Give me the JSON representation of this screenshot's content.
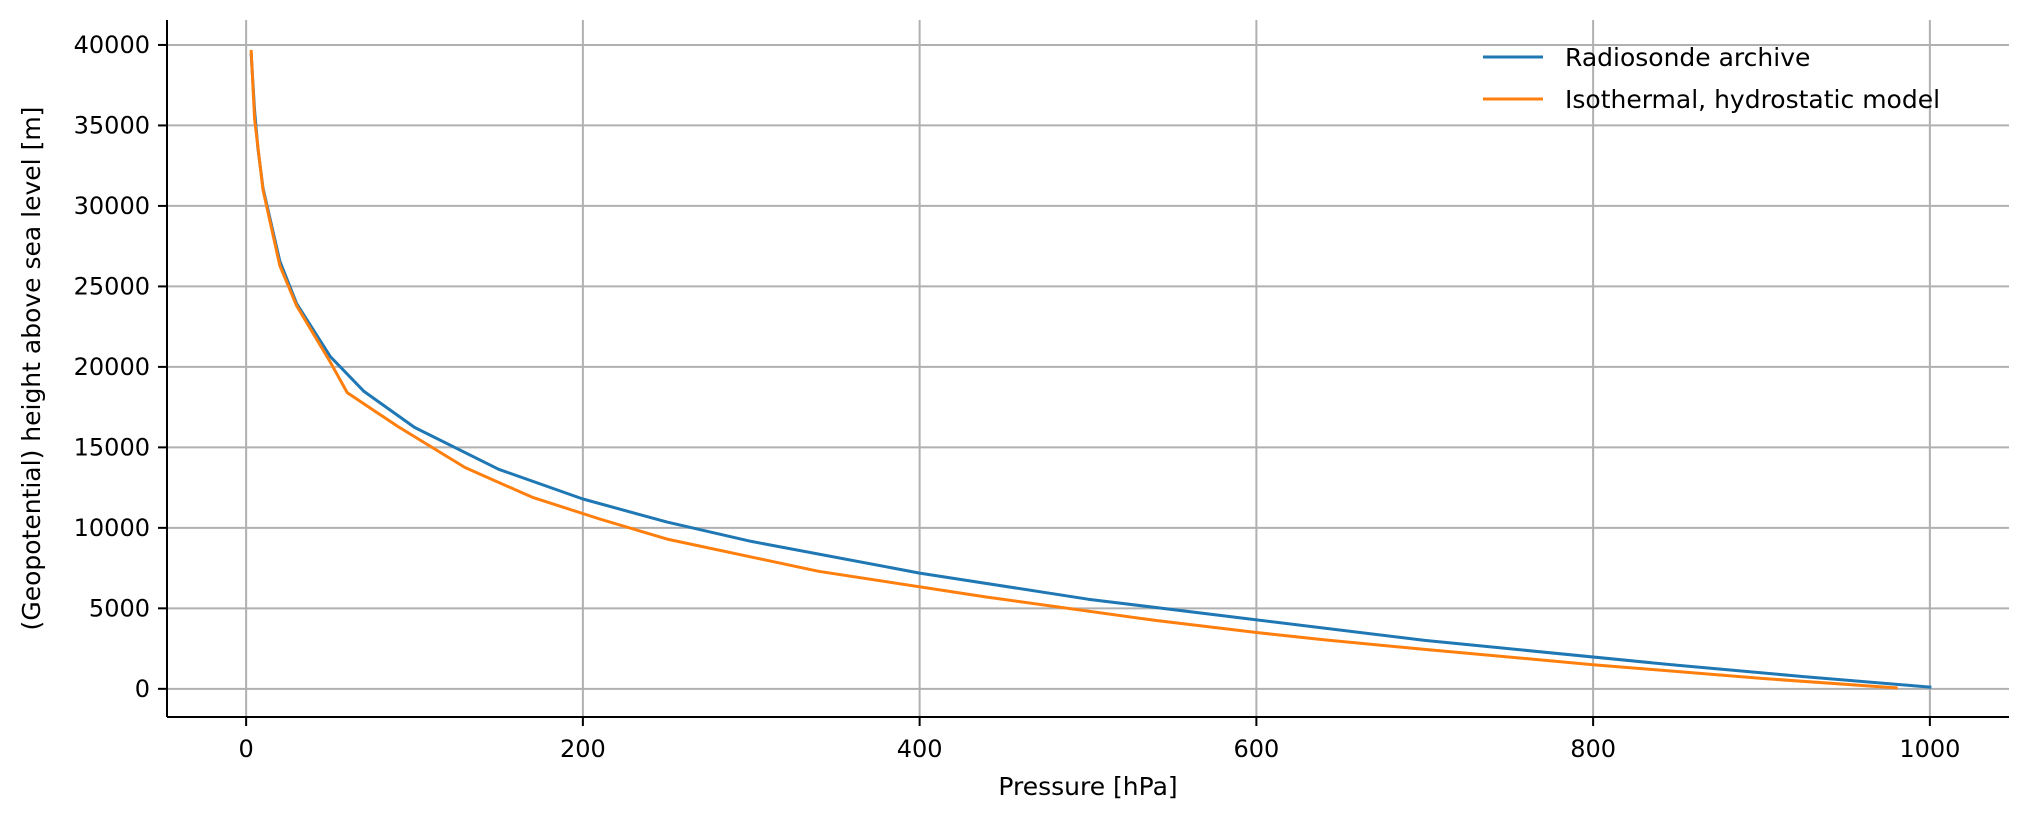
{
  "chart_data": {
    "type": "line",
    "xlabel": "Pressure [hPa]",
    "ylabel": "(Geopotential) height above sea level [m]",
    "xlim": [
      -47,
      1047
    ],
    "ylim": [
      -1750,
      41550
    ],
    "x_ticks": [
      0,
      200,
      400,
      600,
      800,
      1000
    ],
    "y_ticks": [
      0,
      5000,
      10000,
      15000,
      20000,
      25000,
      30000,
      35000,
      40000
    ],
    "grid": true,
    "legend_position": "top-right",
    "series": [
      {
        "name": "Radiosonde archive",
        "color": "#1f77b4",
        "x": [
          1000,
          925,
          850,
          700,
          500,
          400,
          300,
          250,
          200,
          150,
          100,
          70,
          50,
          30,
          20,
          10,
          7,
          5,
          3
        ],
        "y": [
          110,
          760,
          1460,
          3010,
          5570,
          7190,
          9160,
          10360,
          11790,
          13640,
          16240,
          18480,
          20640,
          23930,
          26570,
          31110,
          33580,
          35910,
          39400
        ]
      },
      {
        "name": "Isothermal, hydrostatic model",
        "color": "#ff7f0e",
        "x": [
          980,
          900,
          800,
          700,
          640,
          600,
          540,
          440,
          340,
          250,
          210,
          170,
          130,
          90,
          60,
          50,
          30,
          20,
          10,
          5,
          3
        ],
        "y": [
          60,
          650,
          1500,
          2450,
          3050,
          3500,
          4250,
          5700,
          7300,
          9300,
          10550,
          11900,
          13750,
          16300,
          18400,
          20300,
          23800,
          26300,
          31000,
          35400,
          39600
        ]
      }
    ]
  }
}
